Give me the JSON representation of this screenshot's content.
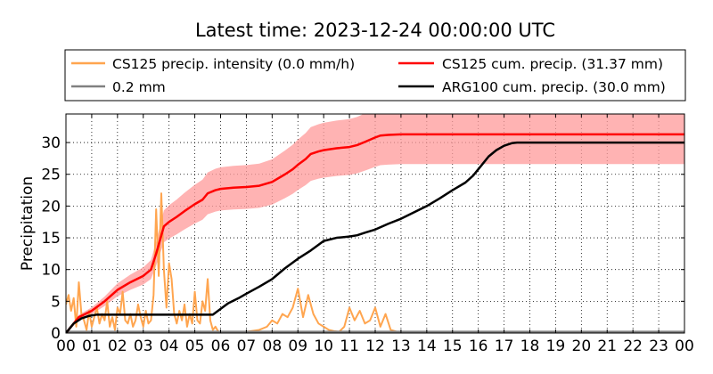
{
  "chart_data": {
    "type": "line",
    "title": "Latest time: 2023-12-24 00:00:00 UTC",
    "ylabel": "Precipitation",
    "xlabel": "",
    "x_unit": "hour (UTC)",
    "xlim": [
      0,
      24
    ],
    "ylim": [
      0,
      34.5
    ],
    "x_ticks": [
      "00",
      "01",
      "02",
      "03",
      "04",
      "05",
      "06",
      "07",
      "08",
      "09",
      "10",
      "11",
      "12",
      "13",
      "14",
      "15",
      "16",
      "17",
      "18",
      "19",
      "20",
      "21",
      "22",
      "23",
      "00"
    ],
    "y_ticks": [
      0,
      5,
      10,
      15,
      20,
      25,
      30
    ],
    "grid": true,
    "legend_location": "top, above plot (2 columns)",
    "legend": [
      {
        "label": "CS125 precip. intensity (0.0 mm/h)",
        "color": "#ffa54f"
      },
      {
        "label": "CS125 cum. precip. (31.37 mm)",
        "color": "#ff0000"
      },
      {
        "label": "0.2 mm",
        "color": "#808080"
      },
      {
        "label": "ARG100 cum. precip. (30.0 mm)",
        "color": "#000000"
      }
    ],
    "series": [
      {
        "name": "CS125 precip. intensity (0.0 mm/h)",
        "color": "#ffa54f",
        "x": [
          0,
          0.1,
          0.2,
          0.3,
          0.4,
          0.5,
          0.6,
          0.7,
          0.8,
          0.9,
          1.0,
          1.1,
          1.2,
          1.3,
          1.4,
          1.5,
          1.6,
          1.7,
          1.8,
          1.9,
          2.0,
          2.1,
          2.2,
          2.3,
          2.4,
          2.5,
          2.6,
          2.7,
          2.8,
          2.9,
          3.0,
          3.1,
          3.2,
          3.3,
          3.4,
          3.5,
          3.6,
          3.7,
          3.8,
          3.9,
          4.0,
          4.1,
          4.2,
          4.3,
          4.4,
          4.5,
          4.6,
          4.7,
          4.8,
          4.9,
          5.0,
          5.1,
          5.2,
          5.3,
          5.4,
          5.5,
          5.6,
          5.7,
          5.8,
          5.9,
          6.0,
          6.5,
          7.0,
          7.5,
          7.8,
          8.0,
          8.2,
          8.4,
          8.6,
          8.8,
          9.0,
          9.2,
          9.4,
          9.6,
          9.8,
          10.0,
          10.2,
          10.4,
          10.6,
          10.8,
          11.0,
          11.2,
          11.4,
          11.6,
          11.8,
          12.0,
          12.2,
          12.4,
          12.6,
          13.0,
          24.0
        ],
        "y": [
          4.5,
          6.0,
          3.5,
          5.5,
          1.0,
          8.0,
          3.0,
          2.0,
          0.5,
          3.5,
          1.0,
          2.5,
          4.0,
          1.5,
          3.0,
          2.0,
          5.0,
          1.0,
          2.5,
          0.5,
          4.0,
          3.0,
          6.5,
          2.0,
          1.5,
          3.0,
          1.0,
          2.0,
          4.5,
          2.5,
          1.0,
          3.5,
          1.5,
          2.0,
          6.0,
          19.5,
          9.0,
          22.0,
          10.0,
          4.0,
          11.0,
          8.5,
          3.0,
          1.5,
          3.5,
          2.0,
          4.5,
          1.0,
          3.0,
          1.5,
          6.5,
          2.0,
          1.5,
          5.0,
          3.5,
          8.5,
          2.0,
          0.5,
          1.0,
          0.3,
          0.0,
          0.1,
          0.2,
          0.5,
          1.0,
          2.0,
          1.5,
          3.0,
          2.5,
          4.0,
          7.0,
          2.5,
          6.0,
          3.0,
          1.5,
          1.0,
          0.5,
          0.3,
          0.2,
          1.0,
          4.0,
          2.0,
          3.5,
          1.5,
          2.0,
          4.0,
          1.0,
          3.0,
          0.5,
          0.0,
          0.0
        ]
      },
      {
        "name": "0.2 mm",
        "color": "#808080",
        "x": [
          0,
          24
        ],
        "y": [
          0.2,
          0.2
        ]
      },
      {
        "name": "CS125 cum. precip. (31.37 mm)",
        "color": "#ff0000",
        "x": [
          0,
          0.5,
          1.0,
          1.5,
          2.0,
          2.5,
          3.0,
          3.3,
          3.5,
          3.8,
          4.0,
          4.3,
          4.6,
          5.0,
          5.3,
          5.5,
          5.8,
          6.0,
          6.5,
          7.0,
          7.5,
          8.0,
          8.5,
          8.8,
          9.0,
          9.3,
          9.5,
          9.8,
          10.0,
          10.5,
          11.0,
          11.3,
          11.6,
          12.0,
          12.2,
          12.5,
          13.0,
          24.0
        ],
        "y": [
          0,
          2.5,
          3.5,
          5.0,
          6.8,
          8.0,
          9.0,
          10.0,
          12.5,
          16.8,
          17.5,
          18.3,
          19.2,
          20.3,
          21.0,
          22.0,
          22.5,
          22.7,
          22.9,
          23.0,
          23.2,
          23.8,
          25.0,
          25.8,
          26.5,
          27.4,
          28.2,
          28.6,
          28.8,
          29.1,
          29.3,
          29.6,
          30.1,
          30.8,
          31.1,
          31.2,
          31.3,
          31.3
        ]
      },
      {
        "name": "ARG100 cum. precip. (30.0 mm)",
        "color": "#000000",
        "x": [
          0,
          0.3,
          0.6,
          0.9,
          1.2,
          2.0,
          3.0,
          4.0,
          5.0,
          5.7,
          6.0,
          6.3,
          6.7,
          7.0,
          7.5,
          8.0,
          8.5,
          9.0,
          9.5,
          10.0,
          10.5,
          11.0,
          11.3,
          11.6,
          12.0,
          12.5,
          13.0,
          13.5,
          14.0,
          14.5,
          15.0,
          15.5,
          15.8,
          16.0,
          16.2,
          16.4,
          16.7,
          17.0,
          17.3,
          17.5,
          24.0
        ],
        "y": [
          0,
          1.5,
          2.3,
          2.7,
          2.9,
          2.9,
          2.9,
          2.9,
          2.9,
          2.9,
          3.8,
          4.7,
          5.5,
          6.2,
          7.3,
          8.5,
          10.2,
          11.7,
          13.0,
          14.5,
          15.0,
          15.2,
          15.4,
          15.8,
          16.3,
          17.2,
          18.0,
          19.0,
          20.0,
          21.2,
          22.5,
          23.7,
          24.8,
          25.8,
          26.8,
          27.8,
          28.8,
          29.5,
          29.9,
          30.0,
          30.0
        ]
      }
    ],
    "band": {
      "of_series": "CS125 cum. precip. (31.37 mm)",
      "color": "#ff9999",
      "lower_factor": 0.85,
      "upper_factor": 1.15
    }
  }
}
